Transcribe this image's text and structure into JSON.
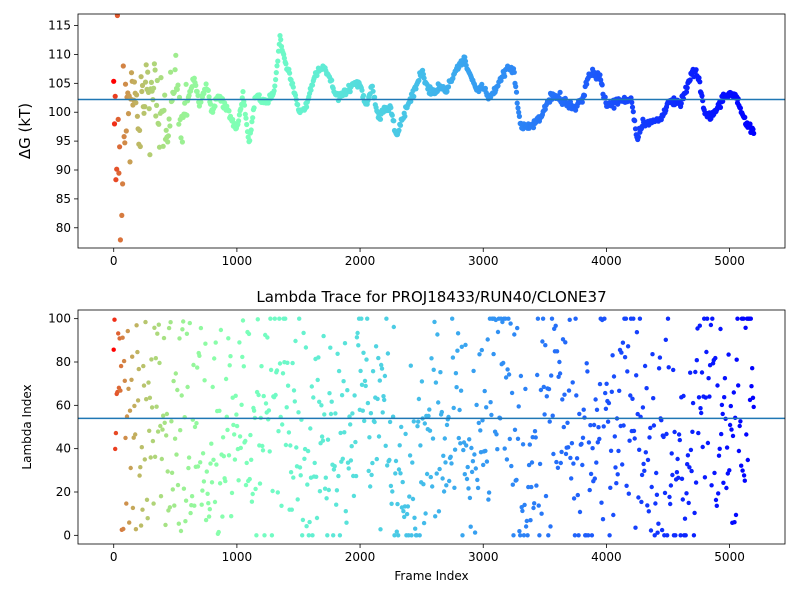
{
  "figure": {
    "background": "#ffffff"
  },
  "chart_data": [
    {
      "type": "scatter",
      "title": "",
      "xlabel": "",
      "ylabel": "ΔG (kT)",
      "xlim": [
        -290,
        5450
      ],
      "ylim": [
        76.5,
        117
      ],
      "xticks": [
        0,
        1000,
        2000,
        3000,
        4000,
        5000
      ],
      "yticks": [
        80,
        85,
        90,
        95,
        100,
        105,
        110,
        115
      ],
      "grid": false,
      "colormap": "rainbow",
      "color_encodes": "frame index (red = early, violet = late)",
      "hline": {
        "y": 102.2,
        "color": "#1f77b4"
      },
      "n_points": 5200,
      "series": [
        {
          "x": [
            0,
            20,
            40,
            60,
            80,
            100,
            130,
            160,
            200,
            250,
            300,
            350,
            400,
            450,
            500,
            550,
            600,
            650,
            700,
            750,
            800,
            850,
            900,
            950,
            1000,
            1050,
            1100,
            1150,
            1200,
            1250,
            1300,
            1350,
            1400,
            1450,
            1500,
            1550,
            1600,
            1650,
            1700,
            1750,
            1800,
            1850,
            1900,
            1950,
            2000,
            2050,
            2100,
            2150,
            2200,
            2250,
            2300,
            2350,
            2400,
            2450,
            2500,
            2550,
            2600,
            2650,
            2700,
            2750,
            2800,
            2850,
            2900,
            2950,
            3000,
            3050,
            3100,
            3150,
            3200,
            3250,
            3300,
            3350,
            3400,
            3450,
            3500,
            3550,
            3600,
            3650,
            3700,
            3750,
            3800,
            3850,
            3900,
            3950,
            4000,
            4050,
            4100,
            4150,
            4200,
            4250,
            4300,
            4350,
            4400,
            4450,
            4500,
            4550,
            4600,
            4650,
            4700,
            4750,
            4800,
            4850,
            4900,
            4950,
            5000,
            5050,
            5100,
            5150,
            5200
          ],
          "y": [
            100,
            90,
            101,
            80,
            103,
            98,
            95,
            106,
            92,
            104,
            101,
            103,
            99,
            97,
            108,
            96,
            102,
            106,
            101,
            105,
            100,
            103,
            101,
            99,
            97,
            103,
            94.5,
            103,
            102,
            102,
            103,
            113,
            108,
            105,
            100.5,
            100.5,
            104,
            107,
            108,
            106,
            103,
            103,
            104,
            105,
            105,
            101,
            104.5,
            99,
            100.5,
            100.5,
            96,
            99.5,
            102,
            104,
            107,
            104,
            103.5,
            104,
            104,
            106,
            108,
            109,
            106,
            104,
            104,
            102.5,
            104,
            106,
            108,
            107,
            97.5,
            97.5,
            97.5,
            99,
            100.5,
            103,
            103,
            102,
            101,
            101,
            102,
            106,
            107,
            106,
            101,
            101.5,
            102,
            102,
            102.5,
            95.5,
            98.5,
            98,
            98.5,
            99,
            102,
            101.5,
            101.5,
            104,
            107,
            106,
            99.5,
            99.5,
            100.5,
            103,
            103,
            103,
            100,
            97.5,
            96.5
          ]
        }
      ]
    },
    {
      "type": "scatter",
      "title": "Lambda Trace for PROJ18433/RUN40/CLONE37",
      "xlabel": "Frame Index",
      "ylabel": "Lambda Index",
      "xlim": [
        -290,
        5450
      ],
      "ylim": [
        -4,
        104
      ],
      "xticks": [
        0,
        1000,
        2000,
        3000,
        4000,
        5000
      ],
      "yticks": [
        0,
        20,
        40,
        60,
        80,
        100
      ],
      "grid": false,
      "colormap": "rainbow",
      "color_encodes": "frame index (red = early, violet = late)",
      "hline": {
        "y": 54,
        "color": "#1f77b4"
      },
      "n_points": 5200,
      "series": [
        {
          "x": [
            0,
            100,
            200,
            300,
            400,
            500,
            600,
            700,
            800,
            900,
            1000,
            1100,
            1200,
            1300,
            1400,
            1500,
            1600,
            1700,
            1800,
            1900,
            2000,
            2100,
            2200,
            2300,
            2400,
            2500,
            2600,
            2700,
            2800,
            2900,
            3000,
            3100,
            3200,
            3300,
            3400,
            3500,
            3600,
            3700,
            3800,
            3900,
            4000,
            4100,
            4200,
            4300,
            4400,
            4500,
            4600,
            4700,
            4800,
            4900,
            5000,
            5100,
            5200
          ],
          "y": [
            50,
            50,
            50,
            50,
            50,
            50,
            50,
            50,
            50,
            50,
            50,
            30,
            45,
            60,
            85,
            60,
            30,
            50,
            55,
            50,
            70,
            60,
            55,
            35,
            20,
            25,
            55,
            35,
            50,
            30,
            40,
            80,
            60,
            35,
            30,
            60,
            55,
            50,
            30,
            35,
            55,
            60,
            75,
            50,
            40,
            35,
            25,
            35,
            80,
            55,
            30,
            70,
            75
          ]
        }
      ]
    }
  ]
}
